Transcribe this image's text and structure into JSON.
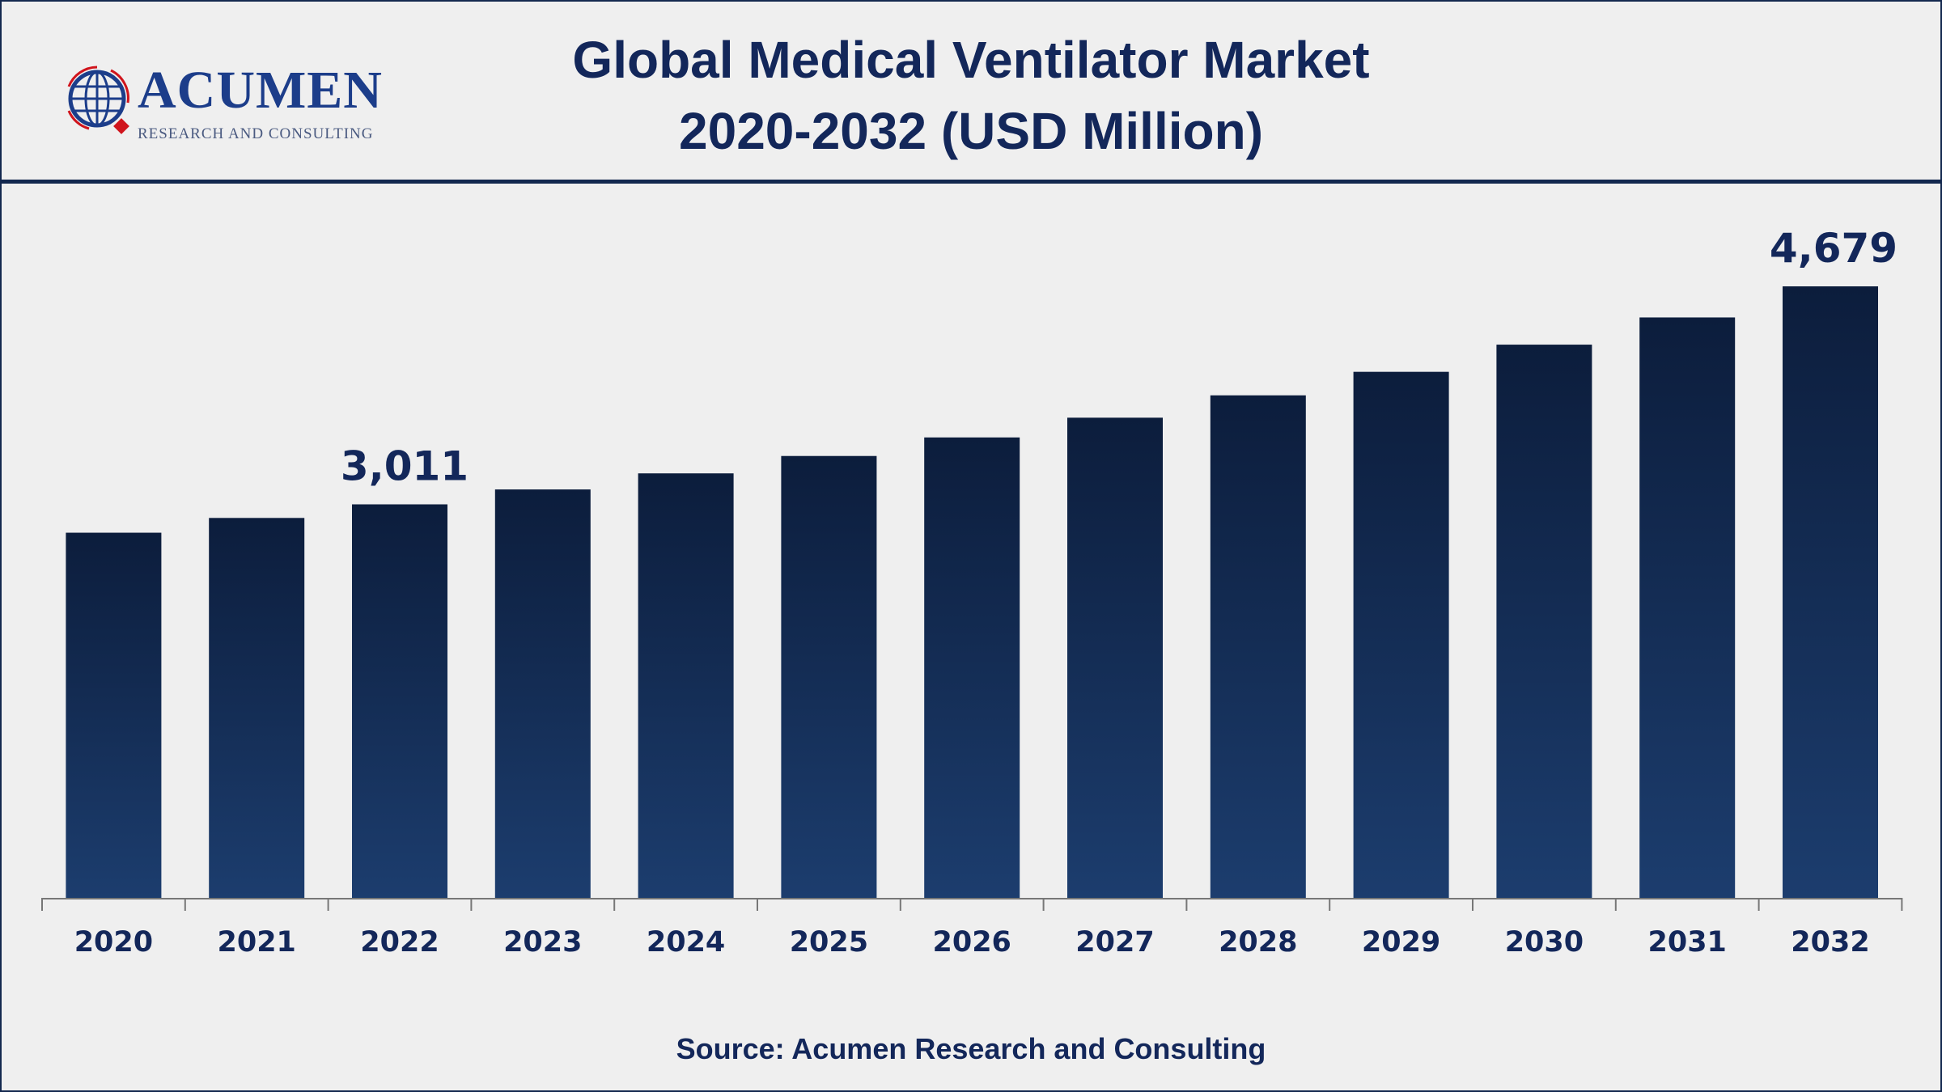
{
  "header": {
    "title_line1": "Global Medical Ventilator Market",
    "title_line2": "2020-2032 (USD Million)"
  },
  "logo": {
    "name": "Acumen",
    "tagline": "RESEARCH AND CONSULTING"
  },
  "source": "Source: Acumen Research and Consulting",
  "colors": {
    "bar_top": "#0c1d3c",
    "bar_bottom": "#1c3d6e",
    "text": "#13275a",
    "logo_red": "#d0141c"
  },
  "chart_data": {
    "type": "bar",
    "title": "Global Medical Ventilator Market 2020-2032 (USD Million)",
    "categories": [
      "2020",
      "2021",
      "2022",
      "2023",
      "2024",
      "2025",
      "2026",
      "2027",
      "2028",
      "2029",
      "2030",
      "2031",
      "2032"
    ],
    "values": [
      2794,
      2907,
      3011,
      3125,
      3248,
      3381,
      3523,
      3674,
      3845,
      4025,
      4233,
      4441,
      4679
    ],
    "data_labels": [
      {
        "category": "2022",
        "text": "3,011"
      },
      {
        "category": "2032",
        "text": "4,679"
      }
    ],
    "xlabel": "",
    "ylabel": "",
    "grid": false,
    "legend": "none"
  }
}
